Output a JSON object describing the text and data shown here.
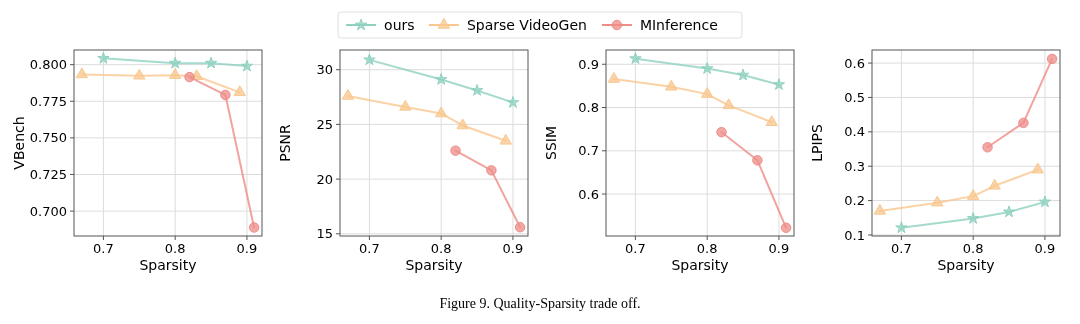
{
  "chart_data": [
    {
      "type": "line",
      "xlabel": "Sparsity",
      "ylabel": "VBench",
      "xlim": [
        0.659,
        0.921
      ],
      "xticks": [
        0.7,
        0.8,
        0.9
      ],
      "ylim": [
        0.683,
        0.81
      ],
      "yticks": [
        {
          "value": 0.7,
          "label": "0.700"
        },
        {
          "value": 0.725,
          "label": "0.725"
        },
        {
          "value": 0.75,
          "label": "0.750"
        },
        {
          "value": 0.775,
          "label": "0.775"
        },
        {
          "value": 0.8,
          "label": "0.800"
        }
      ],
      "grid": true,
      "legend": "top",
      "annotations": [
        "Figure 9. Quality-Sparsity trade off."
      ],
      "series": [
        {
          "name": "ours",
          "color": "#8fd1c0",
          "marker": "star",
          "x": [
            0.7,
            0.8,
            0.85,
            0.9
          ],
          "values": [
            0.8043,
            0.801,
            0.801,
            0.799
          ]
        },
        {
          "name": "Sparse VideoGen",
          "color": "#f9c78e",
          "marker": "triangle",
          "x": [
            0.67,
            0.75,
            0.8,
            0.83,
            0.89
          ],
          "values": [
            0.7933,
            0.7924,
            0.7928,
            0.7921,
            0.7811
          ]
        },
        {
          "name": "MInference",
          "color": "#ee8c88",
          "marker": "circle",
          "x": [
            0.82,
            0.87,
            0.91
          ],
          "values": [
            0.7915,
            0.7793,
            0.6888
          ]
        }
      ]
    },
    {
      "type": "line",
      "xlabel": "Sparsity",
      "ylabel": "PSNR",
      "xlim": [
        0.659,
        0.921
      ],
      "xticks": [
        0.7,
        0.8,
        0.9
      ],
      "ylim": [
        14.8,
        31.8
      ],
      "yticks": [
        15,
        20,
        25,
        30
      ],
      "grid": true,
      "series": [
        {
          "color": "#8fd1c0",
          "marker": "star",
          "x": [
            0.7,
            0.8,
            0.85,
            0.9
          ],
          "values": [
            30.9,
            29.1,
            28.1,
            27.0
          ]
        },
        {
          "color": "#f9c78e",
          "marker": "triangle",
          "x": [
            0.67,
            0.75,
            0.8,
            0.83,
            0.89
          ],
          "values": [
            27.6,
            26.6,
            26.0,
            24.9,
            23.5
          ]
        },
        {
          "color": "#ee8c88",
          "marker": "circle",
          "x": [
            0.82,
            0.87,
            0.91
          ],
          "values": [
            22.6,
            20.8,
            15.6
          ]
        }
      ]
    },
    {
      "type": "line",
      "xlabel": "Sparsity",
      "ylabel": "SSIM",
      "xlim": [
        0.659,
        0.921
      ],
      "xticks": [
        0.7,
        0.8,
        0.9
      ],
      "ylim": [
        0.503,
        0.933
      ],
      "yticks": [
        0.6,
        0.7,
        0.8,
        0.9
      ],
      "grid": true,
      "series": [
        {
          "color": "#8fd1c0",
          "marker": "star",
          "x": [
            0.7,
            0.8,
            0.85,
            0.9
          ],
          "values": [
            0.913,
            0.89,
            0.875,
            0.853
          ]
        },
        {
          "color": "#f9c78e",
          "marker": "triangle",
          "x": [
            0.67,
            0.75,
            0.8,
            0.83,
            0.89
          ],
          "values": [
            0.866,
            0.848,
            0.831,
            0.805,
            0.766
          ]
        },
        {
          "color": "#ee8c88",
          "marker": "circle",
          "x": [
            0.82,
            0.87,
            0.91
          ],
          "values": [
            0.743,
            0.678,
            0.522
          ]
        }
      ]
    },
    {
      "type": "line",
      "xlabel": "Sparsity",
      "ylabel": "LPIPS",
      "xlim": [
        0.659,
        0.921
      ],
      "xticks": [
        0.7,
        0.8,
        0.9
      ],
      "ylim": [
        0.097,
        0.638
      ],
      "yticks": [
        0.1,
        0.2,
        0.3,
        0.4,
        0.5,
        0.6
      ],
      "grid": true,
      "series": [
        {
          "color": "#8fd1c0",
          "marker": "star",
          "x": [
            0.7,
            0.8,
            0.85,
            0.9
          ],
          "values": [
            0.121,
            0.148,
            0.167,
            0.196
          ]
        },
        {
          "color": "#f9c78e",
          "marker": "triangle",
          "x": [
            0.67,
            0.75,
            0.8,
            0.83,
            0.89
          ],
          "values": [
            0.17,
            0.194,
            0.213,
            0.243,
            0.29
          ]
        },
        {
          "color": "#ee8c88",
          "marker": "circle",
          "x": [
            0.82,
            0.87,
            0.91
          ],
          "values": [
            0.355,
            0.426,
            0.612
          ]
        }
      ]
    }
  ]
}
